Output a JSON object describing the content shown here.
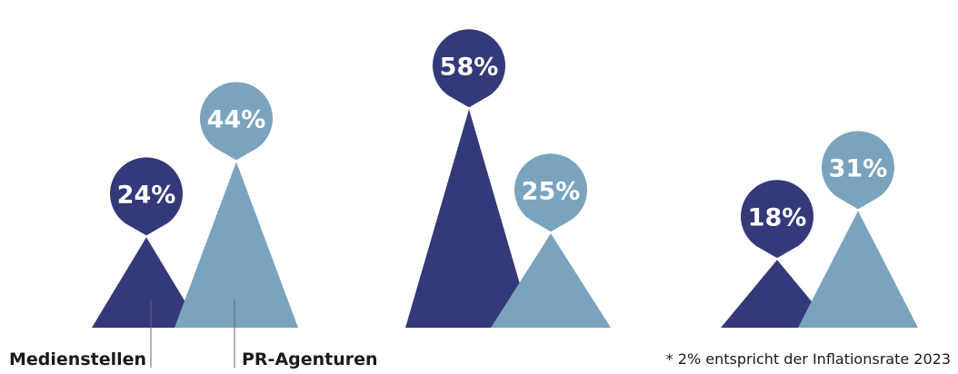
{
  "chart_data": {
    "type": "bar",
    "style": "triangle-peaks",
    "groups": [
      "",
      "",
      ""
    ],
    "series": [
      {
        "name": "Medienstellen",
        "values": [
          24,
          58,
          18
        ],
        "color": "#34397a"
      },
      {
        "name": "PR-Agenturen",
        "values": [
          44,
          25,
          31
        ],
        "color": "#7aa3be"
      }
    ],
    "unit": "%",
    "ylim": [
      0,
      60
    ],
    "legend_position": "bottom-left",
    "footnote": "* 2% entspricht der Inflationsrate 2023"
  }
}
